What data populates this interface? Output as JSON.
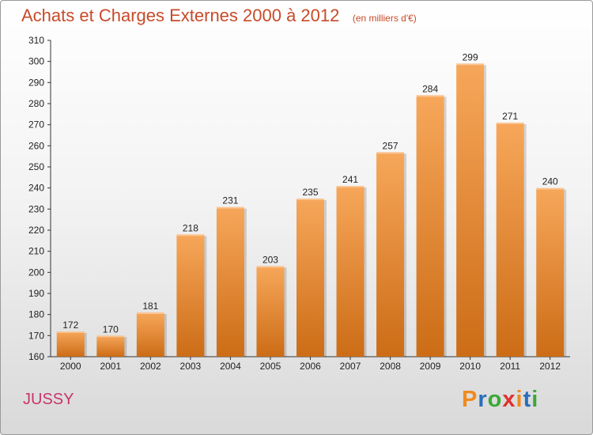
{
  "chart_data": {
    "type": "bar",
    "title": "Achats et Charges Externes 2000 à 2012",
    "subtitle": "(en milliers d'€)",
    "categories": [
      "2000",
      "2001",
      "2002",
      "2003",
      "2004",
      "2005",
      "2006",
      "2007",
      "2008",
      "2009",
      "2010",
      "2011",
      "2012"
    ],
    "values": [
      172,
      170,
      181,
      218,
      231,
      203,
      235,
      241,
      257,
      284,
      299,
      271,
      240
    ],
    "ylim": [
      160,
      310
    ],
    "yticks": [
      160,
      170,
      180,
      190,
      200,
      210,
      220,
      230,
      240,
      250,
      260,
      270,
      280,
      290,
      300,
      310
    ],
    "grid": false,
    "bar_color_top": "#f7a75a",
    "bar_color_bottom": "#cc6c16"
  },
  "footer": {
    "commune": "JUSSY",
    "logo_letters": [
      "P",
      "r",
      "o",
      "x",
      "i",
      "t",
      "i"
    ],
    "logo_colors": [
      "#f08a1c",
      "#2a6ebc",
      "#39a935",
      "#e0312d",
      "#f08a1c",
      "#2a6ebc",
      "#39a935"
    ]
  }
}
